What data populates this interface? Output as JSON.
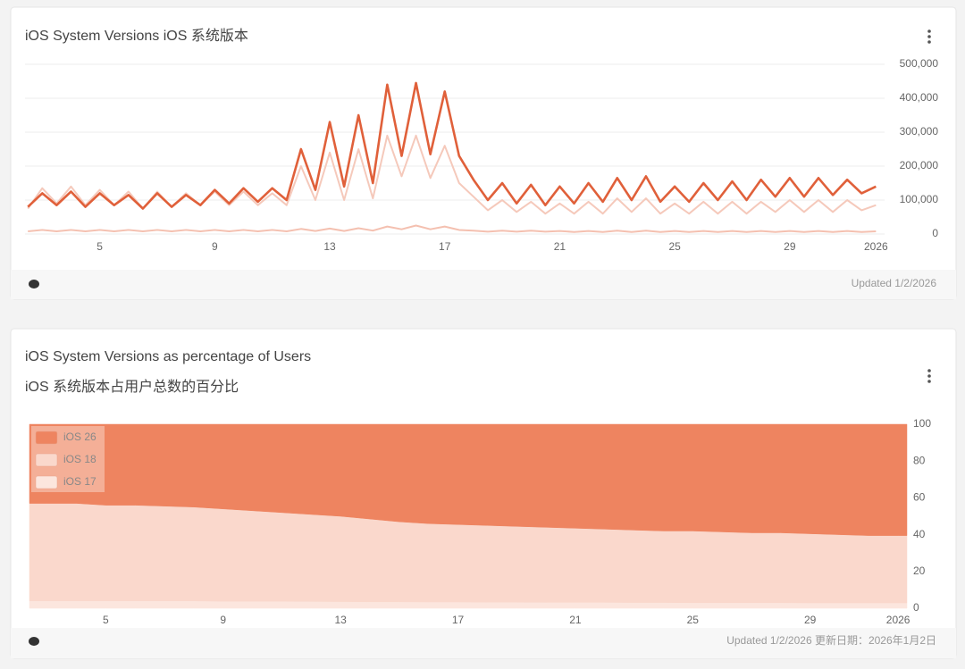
{
  "chart_data": [
    {
      "type": "line",
      "title": "iOS System Versions  iOS 系统版本",
      "footer": "Updated 1/2/2026",
      "grid": true,
      "xlim": [
        2.4,
        32.3
      ],
      "xticks": [
        5,
        9,
        13,
        17,
        21,
        25,
        29,
        {
          "value": 32,
          "label": "2026"
        }
      ],
      "ylim": [
        0,
        500000
      ],
      "yticks": [
        0,
        {
          "value": 100000,
          "label": "100,000"
        },
        {
          "value": 200000,
          "label": "200,000"
        },
        {
          "value": 300000,
          "label": "300,000"
        },
        {
          "value": 400000,
          "label": "400,000"
        },
        {
          "value": 500000,
          "label": "500,000"
        }
      ],
      "x": [
        2.5,
        3,
        3.5,
        4,
        4.5,
        5,
        5.5,
        6,
        6.5,
        7,
        7.5,
        8,
        8.5,
        9,
        9.5,
        10,
        10.5,
        11,
        11.5,
        12,
        12.5,
        13,
        13.5,
        14,
        14.5,
        15,
        15.5,
        16,
        16.5,
        17,
        17.5,
        18,
        18.5,
        19,
        19.5,
        20,
        20.5,
        21,
        21.5,
        22,
        22.5,
        23,
        23.5,
        24,
        24.5,
        25,
        25.5,
        26,
        26.5,
        27,
        27.5,
        28,
        28.5,
        29,
        29.5,
        30,
        30.5,
        31,
        31.5,
        32
      ],
      "series": [
        {
          "color": "#f5c9bb",
          "values": [
            75000,
            135000,
            90000,
            140000,
            85000,
            130000,
            85000,
            125000,
            75000,
            125000,
            80000,
            120000,
            85000,
            125000,
            85000,
            125000,
            85000,
            120000,
            85000,
            200000,
            100000,
            240000,
            100000,
            250000,
            105000,
            290000,
            170000,
            290000,
            165000,
            260000,
            150000,
            110000,
            70000,
            100000,
            65000,
            95000,
            60000,
            90000,
            60000,
            95000,
            60000,
            105000,
            65000,
            105000,
            60000,
            90000,
            60000,
            95000,
            60000,
            95000,
            60000,
            95000,
            65000,
            100000,
            65000,
            100000,
            65000,
            100000,
            70000,
            85000
          ]
        },
        {
          "color": "#f4c0b0",
          "values": [
            8000,
            12000,
            8000,
            12000,
            8000,
            12000,
            8000,
            12000,
            8000,
            12000,
            8000,
            12000,
            8000,
            12000,
            8000,
            12000,
            8000,
            12000,
            8000,
            15000,
            9000,
            16000,
            9000,
            17000,
            10000,
            22000,
            14000,
            25000,
            14000,
            22000,
            12000,
            10000,
            7000,
            10000,
            7000,
            10000,
            7000,
            9000,
            6000,
            9000,
            6000,
            10000,
            6000,
            10000,
            6000,
            9000,
            6000,
            9000,
            6000,
            9000,
            6000,
            9000,
            6000,
            9000,
            6000,
            9000,
            6000,
            9000,
            6000,
            8000
          ]
        },
        {
          "color": "#e0603a",
          "values": [
            80000,
            120000,
            85000,
            125000,
            80000,
            120000,
            85000,
            115000,
            75000,
            120000,
            80000,
            115000,
            85000,
            130000,
            90000,
            135000,
            95000,
            135000,
            100000,
            250000,
            130000,
            330000,
            140000,
            350000,
            150000,
            440000,
            230000,
            445000,
            235000,
            420000,
            230000,
            160000,
            100000,
            150000,
            90000,
            145000,
            85000,
            140000,
            90000,
            150000,
            95000,
            165000,
            100000,
            170000,
            95000,
            140000,
            95000,
            150000,
            100000,
            155000,
            100000,
            160000,
            110000,
            165000,
            110000,
            165000,
            115000,
            160000,
            120000,
            140000
          ]
        }
      ]
    },
    {
      "type": "area",
      "title": "iOS System Versions as percentage of Users",
      "subtitle": "iOS 系统版本占用户总数的百分比",
      "footer": "Updated 1/2/2026  更新日期：2026年1月2日",
      "grid": false,
      "legend": "top-left",
      "xlim": [
        2.4,
        32.3
      ],
      "xticks": [
        5,
        9,
        13,
        17,
        21,
        25,
        29,
        {
          "value": 32,
          "label": "2026"
        }
      ],
      "ylim": [
        0,
        100
      ],
      "yticks": [
        0,
        20,
        40,
        60,
        80,
        100
      ],
      "x": [
        3,
        4,
        5,
        6,
        7,
        8,
        9,
        10,
        11,
        12,
        13,
        14,
        15,
        16,
        17,
        18,
        19,
        20,
        21,
        22,
        23,
        24,
        25,
        26,
        27,
        28,
        29,
        30,
        31,
        32
      ],
      "series": [
        {
          "name": "iOS 26",
          "color": "#ee8460",
          "values": [
            43,
            43,
            44,
            44,
            44.5,
            45,
            46,
            47,
            48,
            49,
            50,
            51.5,
            53,
            54,
            54.5,
            55,
            55.5,
            56,
            56.5,
            57,
            57.5,
            58,
            58,
            58.5,
            59,
            59,
            59.5,
            60,
            60.5,
            60.5
          ]
        },
        {
          "name": "iOS 18",
          "color": "#fad8cc",
          "values": [
            53,
            53,
            52,
            52,
            51.5,
            51,
            50.2,
            49.2,
            48.2,
            47.3,
            46.4,
            45,
            43.5,
            42.6,
            42.1,
            41.7,
            41.2,
            40.8,
            40.3,
            39.8,
            39.4,
            38.9,
            39,
            38.5,
            38,
            38,
            37.6,
            37.1,
            36.6,
            36.6
          ]
        },
        {
          "name": "iOS 17",
          "color": "#fce6de",
          "values": [
            4,
            4,
            4,
            4,
            4,
            4,
            3.8,
            3.8,
            3.8,
            3.7,
            3.6,
            3.5,
            3.5,
            3.4,
            3.4,
            3.3,
            3.3,
            3.2,
            3.2,
            3.2,
            3.1,
            3.1,
            3,
            3,
            3,
            3,
            2.9,
            2.9,
            2.9,
            2.9
          ]
        }
      ]
    }
  ]
}
